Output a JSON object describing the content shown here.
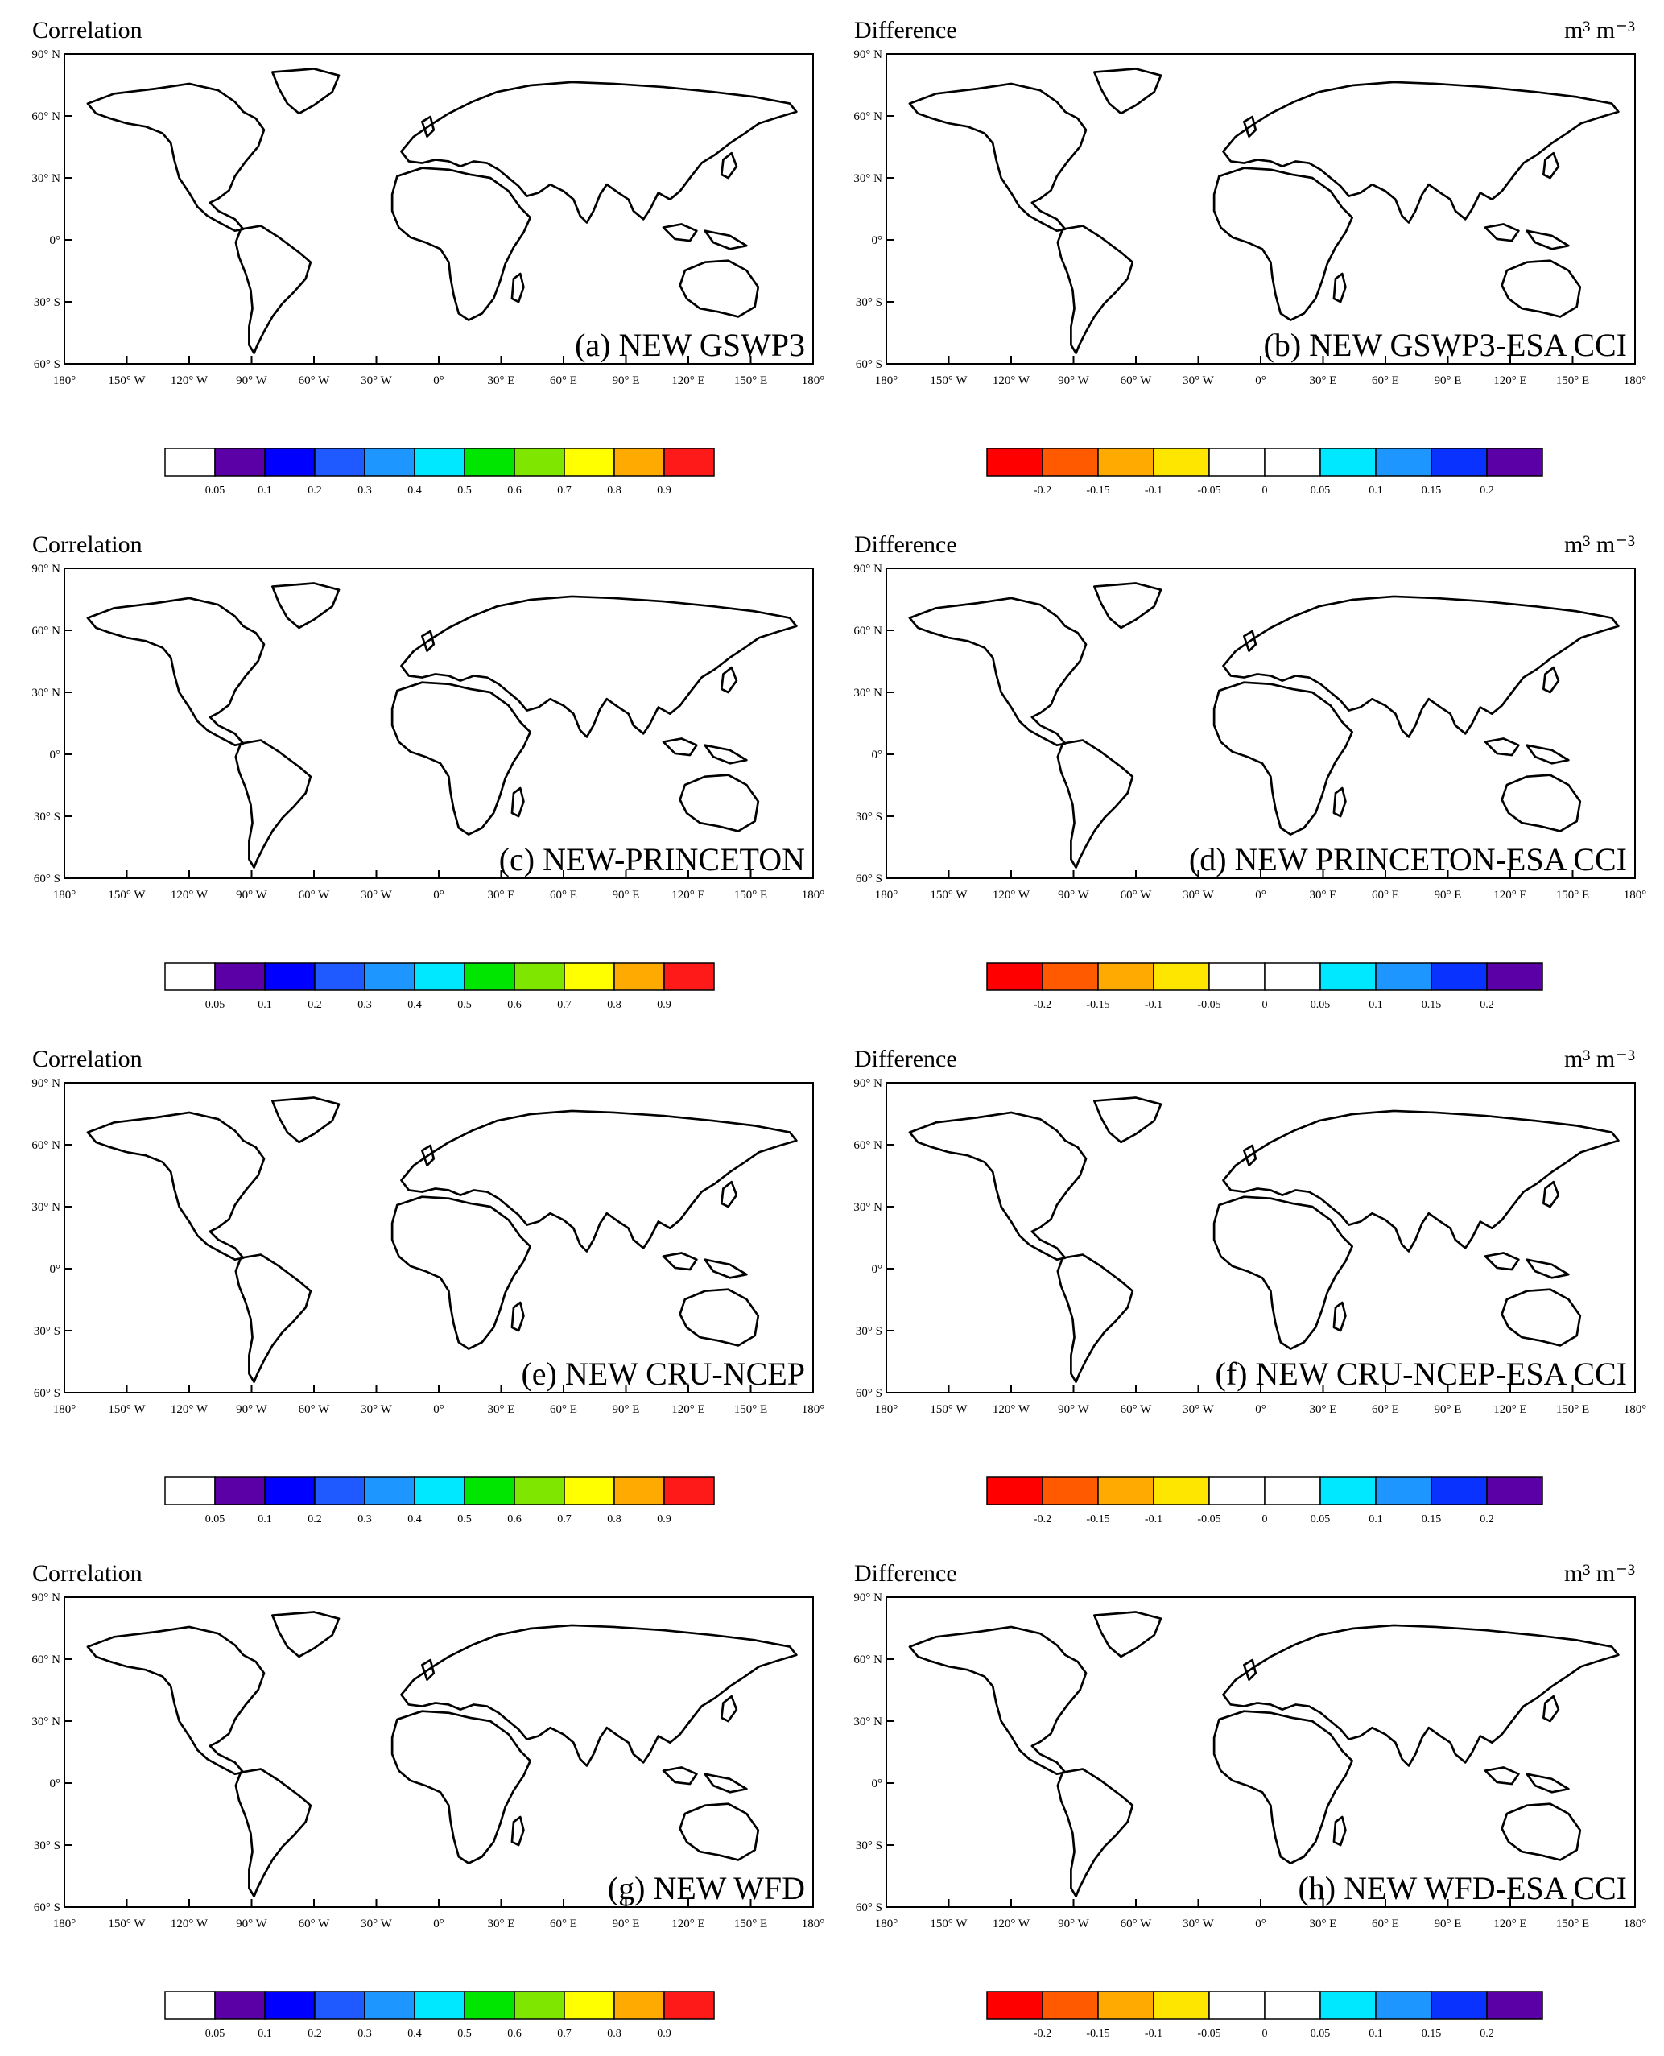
{
  "colors": {
    "correlation_scale": [
      "#ffffff",
      "#5a00a6",
      "#0000ff",
      "#1e5aff",
      "#1e96ff",
      "#00e8ff",
      "#00e600",
      "#7fe600",
      "#ffff00",
      "#ffaa00",
      "#ff1a1a"
    ],
    "difference_scale": [
      "#ff0000",
      "#ff5a00",
      "#ffaa00",
      "#ffe600",
      "#ffffff",
      "#ffffff",
      "#00e8ff",
      "#1e96ff",
      "#0a32ff",
      "#5a00a6"
    ],
    "no_data": "#c8c8c8",
    "coastline": "#000000"
  },
  "left_column_title": "Correlation",
  "right_column_title": "Difference",
  "difference_units": "m³ m⁻³",
  "lat_ticks": [
    "90° N",
    "60° N",
    "30° N",
    "0°",
    "30° S",
    "60° S"
  ],
  "lon_ticks": [
    "180°",
    "150° W",
    "120° W",
    "90° W",
    "60° W",
    "30° W",
    "0°",
    "30° E",
    "60° E",
    "90° E",
    "120° E",
    "150° E",
    "180°"
  ],
  "correlation_colorbar_labels": [
    "0.05",
    "0.1",
    "0.2",
    "0.3",
    "0.4",
    "0.5",
    "0.6",
    "0.7",
    "0.8",
    "0.9"
  ],
  "difference_colorbar_labels": [
    "-0.2",
    "-0.15",
    "-0.1",
    "-0.05",
    "0",
    "0.05",
    "0.1",
    "0.15",
    "0.2"
  ],
  "panels": [
    {
      "label": "(a) NEW GSWP3",
      "kind": "correlation"
    },
    {
      "label": "(b) NEW GSWP3-ESA CCI",
      "kind": "difference"
    },
    {
      "label": "(c) NEW-PRINCETON",
      "kind": "correlation"
    },
    {
      "label": "(d) NEW PRINCETON-ESA CCI",
      "kind": "difference"
    },
    {
      "label": "(e) NEW CRU-NCEP",
      "kind": "correlation"
    },
    {
      "label": "(f) NEW CRU-NCEP-ESA CCI",
      "kind": "difference"
    },
    {
      "label": "(g) NEW WFD",
      "kind": "correlation"
    },
    {
      "label": "(h) NEW WFD-ESA CCI",
      "kind": "difference"
    }
  ]
}
